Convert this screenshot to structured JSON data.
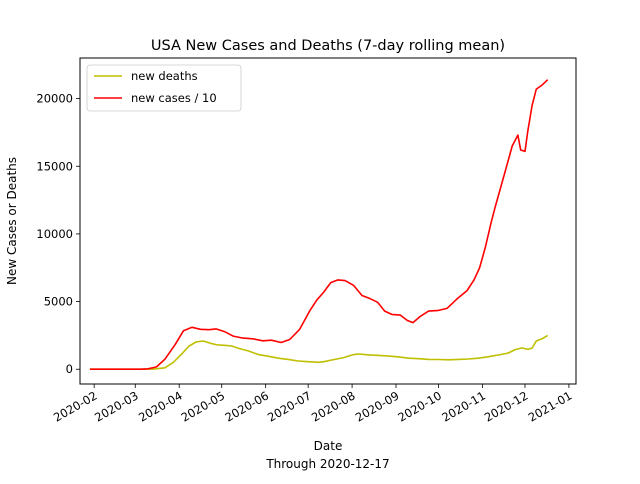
{
  "chart_data": {
    "type": "line",
    "title": "USA New Cases and Deaths (7-day rolling mean)",
    "xlabel": "Date",
    "xlabel2": "Through 2020-12-17",
    "ylabel": "New Cases or Deaths",
    "xlim": [
      "2020-01-22",
      "2021-01-06"
    ],
    "ylim": [
      -1090,
      23000
    ],
    "x_ticks": [
      "2020-02",
      "2020-03",
      "2020-04",
      "2020-05",
      "2020-06",
      "2020-07",
      "2020-08",
      "2020-09",
      "2020-10",
      "2020-11",
      "2020-12",
      "2021-01"
    ],
    "y_ticks": [
      0,
      5000,
      10000,
      15000,
      20000
    ],
    "grid": false,
    "legend_position": "upper-left",
    "series": [
      {
        "name": "new deaths",
        "color": "#bfbf00",
        "points": [
          [
            "2020-01-29",
            0
          ],
          [
            "2020-02-15",
            0
          ],
          [
            "2020-03-05",
            0
          ],
          [
            "2020-03-14",
            10
          ],
          [
            "2020-03-22",
            110
          ],
          [
            "2020-03-28",
            520
          ],
          [
            "2020-04-03",
            1150
          ],
          [
            "2020-04-08",
            1720
          ],
          [
            "2020-04-13",
            2020
          ],
          [
            "2020-04-18",
            2090
          ],
          [
            "2020-04-23",
            1920
          ],
          [
            "2020-04-28",
            1800
          ],
          [
            "2020-05-03",
            1770
          ],
          [
            "2020-05-08",
            1720
          ],
          [
            "2020-05-13",
            1540
          ],
          [
            "2020-05-20",
            1350
          ],
          [
            "2020-05-27",
            1080
          ],
          [
            "2020-06-03",
            960
          ],
          [
            "2020-06-10",
            820
          ],
          [
            "2020-06-17",
            730
          ],
          [
            "2020-06-24",
            610
          ],
          [
            "2020-07-01",
            560
          ],
          [
            "2020-07-08",
            510
          ],
          [
            "2020-07-12",
            560
          ],
          [
            "2020-07-19",
            710
          ],
          [
            "2020-07-26",
            860
          ],
          [
            "2020-08-02",
            1080
          ],
          [
            "2020-08-06",
            1130
          ],
          [
            "2020-08-13",
            1060
          ],
          [
            "2020-08-20",
            1020
          ],
          [
            "2020-08-27",
            970
          ],
          [
            "2020-09-03",
            910
          ],
          [
            "2020-09-10",
            820
          ],
          [
            "2020-09-17",
            780
          ],
          [
            "2020-09-24",
            730
          ],
          [
            "2020-10-01",
            720
          ],
          [
            "2020-10-08",
            700
          ],
          [
            "2020-10-15",
            730
          ],
          [
            "2020-10-22",
            760
          ],
          [
            "2020-10-29",
            820
          ],
          [
            "2020-11-05",
            920
          ],
          [
            "2020-11-12",
            1050
          ],
          [
            "2020-11-19",
            1190
          ],
          [
            "2020-11-24",
            1450
          ],
          [
            "2020-11-29",
            1580
          ],
          [
            "2020-12-03",
            1470
          ],
          [
            "2020-12-06",
            1560
          ],
          [
            "2020-12-09",
            2090
          ],
          [
            "2020-12-13",
            2250
          ],
          [
            "2020-12-17",
            2500
          ]
        ]
      },
      {
        "name": "new cases / 10",
        "color": "#ff0000",
        "points": [
          [
            "2020-01-29",
            0
          ],
          [
            "2020-02-15",
            0
          ],
          [
            "2020-03-05",
            0
          ],
          [
            "2020-03-10",
            30
          ],
          [
            "2020-03-16",
            170
          ],
          [
            "2020-03-22",
            750
          ],
          [
            "2020-03-29",
            1800
          ],
          [
            "2020-04-04",
            2850
          ],
          [
            "2020-04-10",
            3100
          ],
          [
            "2020-04-16",
            2950
          ],
          [
            "2020-04-22",
            2920
          ],
          [
            "2020-04-27",
            2980
          ],
          [
            "2020-05-03",
            2780
          ],
          [
            "2020-05-09",
            2450
          ],
          [
            "2020-05-16",
            2300
          ],
          [
            "2020-05-23",
            2250
          ],
          [
            "2020-05-30",
            2100
          ],
          [
            "2020-06-05",
            2150
          ],
          [
            "2020-06-12",
            1980
          ],
          [
            "2020-06-18",
            2200
          ],
          [
            "2020-06-25",
            2950
          ],
          [
            "2020-07-02",
            4300
          ],
          [
            "2020-07-07",
            5100
          ],
          [
            "2020-07-12",
            5700
          ],
          [
            "2020-07-17",
            6400
          ],
          [
            "2020-07-22",
            6600
          ],
          [
            "2020-07-27",
            6550
          ],
          [
            "2020-08-02",
            6200
          ],
          [
            "2020-08-08",
            5450
          ],
          [
            "2020-08-13",
            5250
          ],
          [
            "2020-08-19",
            4950
          ],
          [
            "2020-08-24",
            4300
          ],
          [
            "2020-08-29",
            4050
          ],
          [
            "2020-09-04",
            4000
          ],
          [
            "2020-09-09",
            3600
          ],
          [
            "2020-09-13",
            3450
          ],
          [
            "2020-09-18",
            3900
          ],
          [
            "2020-09-24",
            4300
          ],
          [
            "2020-10-01",
            4350
          ],
          [
            "2020-10-07",
            4500
          ],
          [
            "2020-10-14",
            5200
          ],
          [
            "2020-10-21",
            5800
          ],
          [
            "2020-10-26",
            6600
          ],
          [
            "2020-10-30",
            7500
          ],
          [
            "2020-11-03",
            9000
          ],
          [
            "2020-11-07",
            10800
          ],
          [
            "2020-11-10",
            12000
          ],
          [
            "2020-11-14",
            13500
          ],
          [
            "2020-11-18",
            15000
          ],
          [
            "2020-11-22",
            16500
          ],
          [
            "2020-11-26",
            17300
          ],
          [
            "2020-11-28",
            16200
          ],
          [
            "2020-12-01",
            16100
          ],
          [
            "2020-12-03",
            17600
          ],
          [
            "2020-12-06",
            19500
          ],
          [
            "2020-12-09",
            20700
          ],
          [
            "2020-12-13",
            21000
          ],
          [
            "2020-12-17",
            21400
          ]
        ]
      }
    ]
  }
}
